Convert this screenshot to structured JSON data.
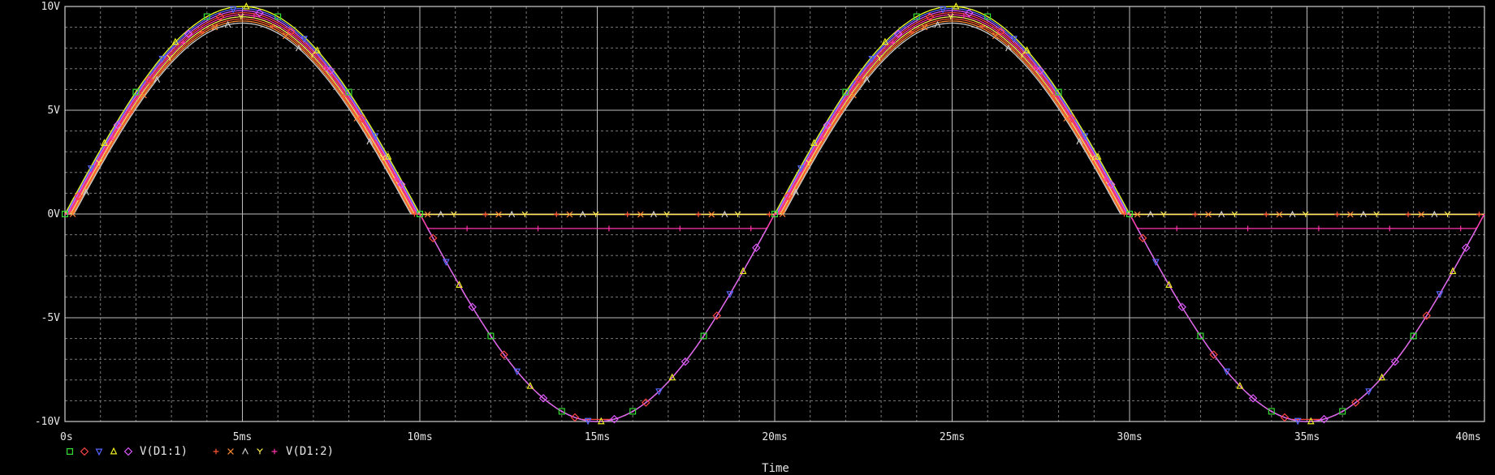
{
  "chart_data": {
    "type": "line",
    "xlabel": "Time",
    "ylabel": "",
    "xlim": [
      0,
      40
    ],
    "ylim": [
      -10,
      10
    ],
    "x_ticks": [
      0,
      5,
      10,
      15,
      20,
      25,
      30,
      35,
      40
    ],
    "x_tick_labels": [
      "0s",
      "5ms",
      "10ms",
      "15ms",
      "20ms",
      "25ms",
      "30ms",
      "35ms",
      "40ms"
    ],
    "y_ticks": [
      10,
      5,
      0,
      -5,
      -10
    ],
    "y_tick_labels": [
      "10V",
      "5V",
      "0V",
      "-5V",
      "-10V"
    ],
    "grid": true,
    "legend_placement": "bottom-left",
    "background": "#000000",
    "legend": [
      {
        "marker": "square",
        "color": "#33dd33",
        "label": ""
      },
      {
        "marker": "diamond",
        "color": "#ff4444",
        "label": ""
      },
      {
        "marker": "triangle-down",
        "color": "#5566ff",
        "label": ""
      },
      {
        "marker": "triangle-up",
        "color": "#eeee22",
        "label": ""
      },
      {
        "marker": "diamond",
        "color": "#dd55ff",
        "label": "V(D1:1)"
      },
      {
        "marker": "plus",
        "color": "#ff5533",
        "label": ""
      },
      {
        "marker": "x",
        "color": "#ff8833",
        "label": ""
      },
      {
        "marker": "caret",
        "color": "#cccccc",
        "label": ""
      },
      {
        "marker": "y",
        "color": "#ffee55",
        "label": ""
      },
      {
        "marker": "plus",
        "color": "#ff33aa",
        "label": "V(D1:2)"
      }
    ],
    "series": [
      {
        "name": "V(D1:1)",
        "color": "#33dd33",
        "marker": "square",
        "peak": 10.0,
        "neg_peak": -10.0,
        "forward_drop": 0.0
      },
      {
        "name": "",
        "color": "#ff4444",
        "marker": "diamond",
        "peak": 9.7,
        "neg_peak": -9.9,
        "forward_drop": 0.3
      },
      {
        "name": "",
        "color": "#5566ff",
        "marker": "triangle-down",
        "peak": 9.9,
        "neg_peak": -10.0,
        "forward_drop": 0.1
      },
      {
        "name": "",
        "color": "#eeee22",
        "marker": "triangle-up",
        "peak": 10.0,
        "neg_peak": -10.0,
        "forward_drop": 0.0
      },
      {
        "name": "V(D1:1)",
        "color": "#dd55ff",
        "marker": "diamond",
        "peak": 9.8,
        "neg_peak": -10.0,
        "forward_drop": 0.2
      },
      {
        "name": "V(D1:2)",
        "color": "#ff5533",
        "marker": "plus",
        "peak": 9.4,
        "neg_peak": -0.02,
        "forward_drop": 0.6
      },
      {
        "name": "V(D1:2)",
        "color": "#ff8833",
        "marker": "x",
        "peak": 9.3,
        "neg_peak": -0.02,
        "forward_drop": 0.7
      },
      {
        "name": "V(D1:2)",
        "color": "#cccccc",
        "marker": "caret",
        "peak": 9.2,
        "neg_peak": -0.02,
        "forward_drop": 0.8
      },
      {
        "name": "V(D1:2)",
        "color": "#ffee55",
        "marker": "y",
        "peak": 9.5,
        "neg_peak": -0.02,
        "forward_drop": 0.5
      },
      {
        "name": "V(D1:2)",
        "color": "#ff33aa",
        "marker": "plus",
        "peak": 9.6,
        "neg_peak": -0.7,
        "forward_drop": 0.4
      }
    ]
  }
}
